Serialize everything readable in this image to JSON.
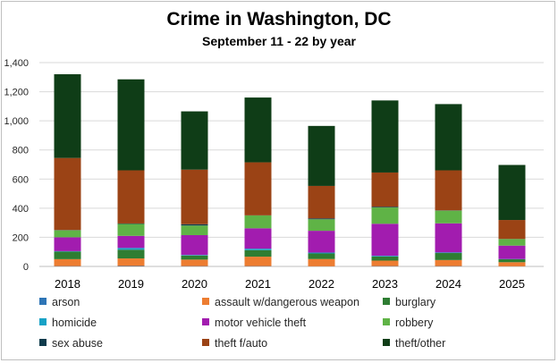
{
  "chart_data": {
    "type": "bar",
    "stacked": true,
    "title": "Crime in Washington, DC",
    "subtitle": "September 11 - 22 by year",
    "categories": [
      "2018",
      "2019",
      "2020",
      "2021",
      "2022",
      "2023",
      "2024",
      "2025"
    ],
    "ylim": [
      0,
      1400
    ],
    "yticks": [
      0,
      200,
      400,
      600,
      800,
      1000,
      1200,
      1400
    ],
    "ytick_labels": [
      "0",
      "200",
      "400",
      "600",
      "800",
      "1,000",
      "1,200",
      "1,400"
    ],
    "grid": true,
    "legend_position": "bottom",
    "series": [
      {
        "name": "arson",
        "color": "#2e75b6",
        "values": [
          2,
          3,
          2,
          2,
          1,
          2,
          2,
          1
        ]
      },
      {
        "name": "assault w/dangerous weapon",
        "color": "#ed7d31",
        "values": [
          48,
          52,
          45,
          65,
          50,
          38,
          42,
          28
        ]
      },
      {
        "name": "burglary",
        "color": "#2e7d32",
        "values": [
          52,
          60,
          28,
          45,
          38,
          28,
          48,
          20
        ]
      },
      {
        "name": "homicide",
        "color": "#17a2c6",
        "values": [
          3,
          12,
          4,
          10,
          6,
          5,
          4,
          2
        ]
      },
      {
        "name": "motor vehicle theft",
        "color": "#a21caf",
        "values": [
          95,
          83,
          136,
          140,
          150,
          220,
          200,
          92
        ]
      },
      {
        "name": "robbery",
        "color": "#5fb346",
        "values": [
          48,
          82,
          66,
          88,
          79,
          112,
          87,
          45
        ]
      },
      {
        "name": "sex abuse",
        "color": "#0d3b4c",
        "values": [
          2,
          3,
          9,
          1,
          6,
          5,
          2,
          1
        ]
      },
      {
        "name": "theft f/auto",
        "color": "#9b4315",
        "values": [
          495,
          365,
          375,
          364,
          223,
          235,
          275,
          130
        ]
      },
      {
        "name": "theft/other",
        "color": "#0f3d17",
        "values": [
          575,
          625,
          400,
          445,
          412,
          495,
          455,
          378
        ]
      }
    ]
  }
}
